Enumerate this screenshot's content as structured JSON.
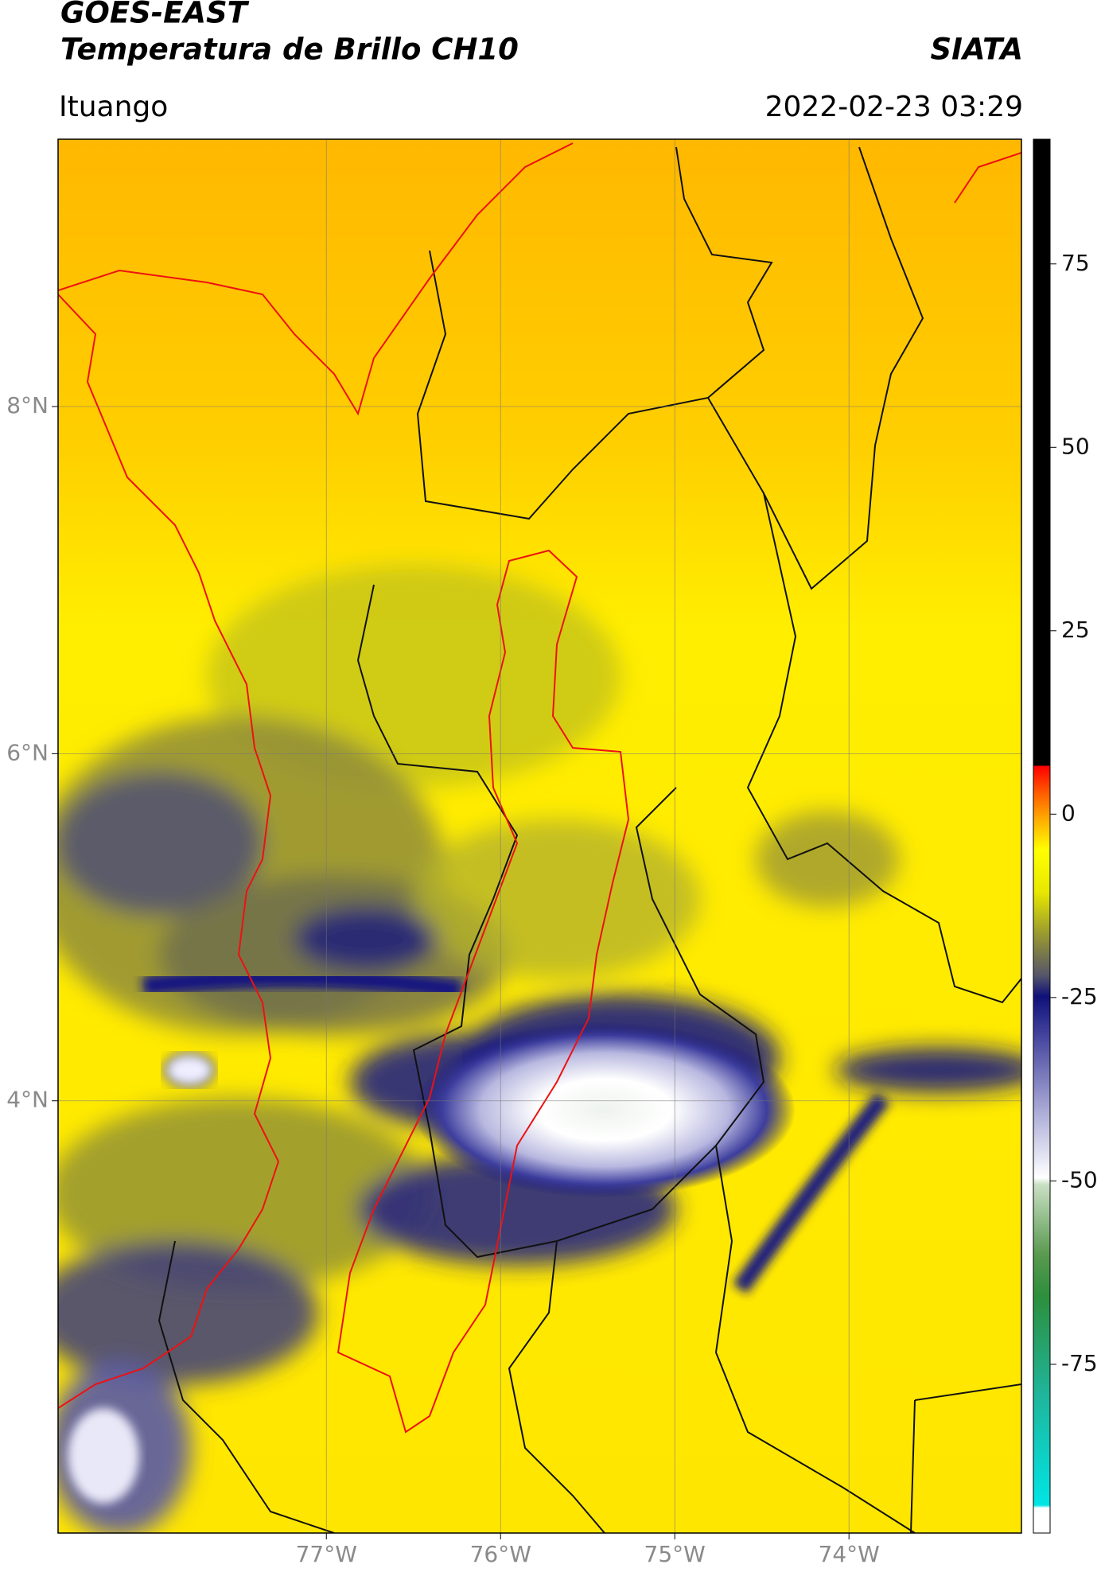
{
  "chart_data": {
    "type": "map",
    "title": "GOES-EAST",
    "subtitle": "Temperatura de Brillo CH10",
    "source": "SIATA",
    "region": "Ituango",
    "timestamp": "2022-02-23 03:29",
    "xlim": [
      -78.54,
      -73.01
    ],
    "ylim": [
      1.51,
      9.54
    ],
    "xticks": [
      {
        "value": -77,
        "label": "77°W"
      },
      {
        "value": -76,
        "label": "76°W"
      },
      {
        "value": -75,
        "label": "75°W"
      },
      {
        "value": -74,
        "label": "74°W"
      }
    ],
    "yticks": [
      {
        "value": 8,
        "label": "8°N"
      },
      {
        "value": 6,
        "label": "6°N"
      },
      {
        "value": 4,
        "label": "4°N"
      }
    ],
    "grid": true,
    "colorbar": {
      "lim": [
        -98,
        92
      ],
      "ticks": [
        75,
        50,
        25,
        0,
        -25,
        -50,
        -75
      ]
    }
  }
}
